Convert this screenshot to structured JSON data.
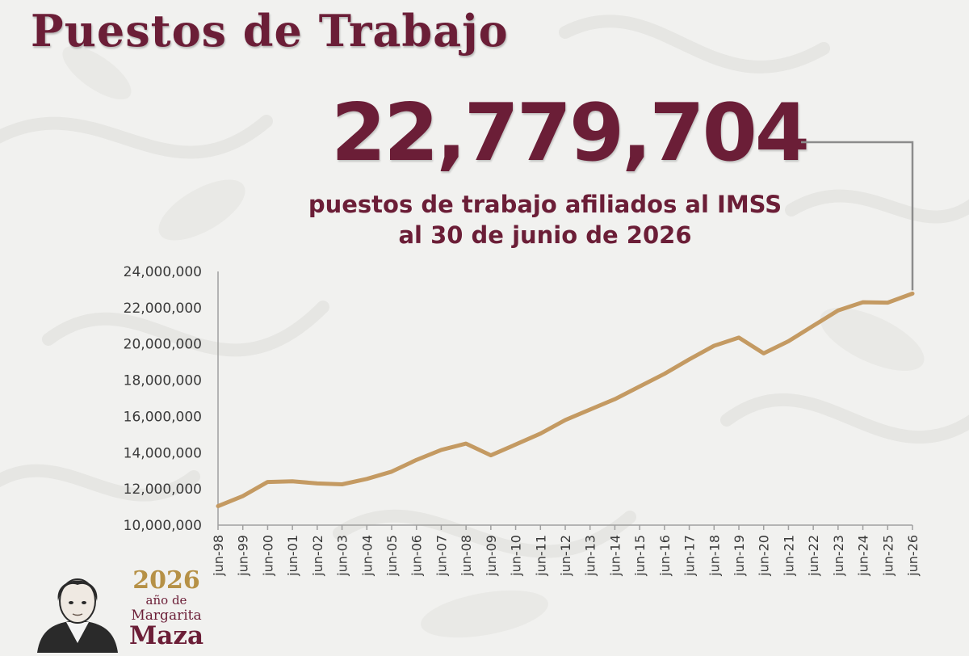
{
  "header": {
    "title": "Puestos de Trabajo",
    "headline_number": "22,779,704",
    "subtitle_line1": "puestos de trabajo afiliados al IMSS",
    "subtitle_line2": "al 30 de junio de 2026"
  },
  "logo": {
    "year": "2026",
    "line1": "año de",
    "line2": "Margarita",
    "line3": "Maza"
  },
  "colors": {
    "brand": "#6b1e37",
    "line": "#c49a62",
    "gold": "#b69146",
    "connector": "#8c8c8c"
  },
  "chart_data": {
    "type": "line",
    "title": "",
    "xlabel": "",
    "ylabel": "",
    "ylim": [
      10000000,
      24000000
    ],
    "yticks": [
      10000000,
      12000000,
      14000000,
      16000000,
      18000000,
      20000000,
      22000000,
      24000000
    ],
    "ytick_labels": [
      "10,000,000",
      "12,000,000",
      "14,000,000",
      "16,000,000",
      "18,000,000",
      "20,000,000",
      "22,000,000",
      "24,000,000"
    ],
    "grid": false,
    "categories": [
      "jun-98",
      "jun-99",
      "jun-00",
      "jun-01",
      "jun-02",
      "jun-03",
      "jun-04",
      "jun-05",
      "jun-06",
      "jun-07",
      "jun-08",
      "jun-09",
      "jun-10",
      "jun-11",
      "jun-12",
      "jun-13",
      "jun-14",
      "jun-15",
      "jun-16",
      "jun-17",
      "jun-18",
      "jun-19",
      "jun-20",
      "jun-21",
      "jun-22",
      "jun-23",
      "jun-24",
      "jun-25",
      "jun-26"
    ],
    "series": [
      {
        "values": [
          11050000,
          11600000,
          12380000,
          12420000,
          12300000,
          12250000,
          12550000,
          12950000,
          13600000,
          14150000,
          14500000,
          13850000,
          14450000,
          15050000,
          15800000,
          16380000,
          16950000,
          17650000,
          18350000,
          19150000,
          19900000,
          20350000,
          19480000,
          20150000,
          21000000,
          21850000,
          22300000,
          22280000,
          22779704
        ]
      }
    ]
  }
}
